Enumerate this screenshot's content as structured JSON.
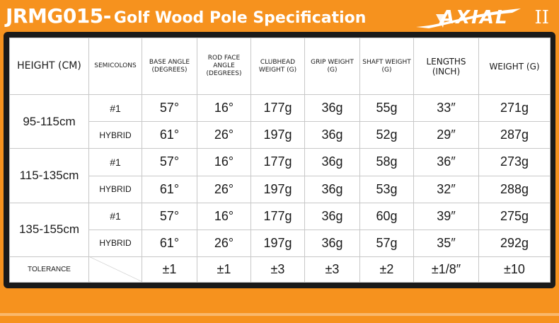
{
  "header": {
    "code": "JRMG015-",
    "subtitle": "Golf Wood Pole Specification",
    "logo_brand": "AXIAL",
    "logo_mark": "II"
  },
  "colors": {
    "background": "#f6921e",
    "frame": "#1a1a1a",
    "grid": "#c8c8c8"
  },
  "table": {
    "columns": [
      "HEIGHT (CM)",
      "SEMICOLONS",
      "BASE ANGLE (DEGREES)",
      "ROD FACE ANGLE (DEGREES)",
      "CLUBHEAD WEIGHT (G)",
      "GRIP WEIGHT (G)",
      "SHAFT WEIGHT (G)",
      "LENGTHS (INCH)",
      "WEIGHT (G)"
    ],
    "groups": [
      {
        "height": "95-115cm",
        "rows": [
          {
            "type": "#1",
            "base_angle": "57°",
            "face_angle": "16°",
            "clubhead": "177g",
            "grip": "36g",
            "shaft": "55g",
            "length": "33″",
            "weight": "271g"
          },
          {
            "type": "HYBRID",
            "base_angle": "61°",
            "face_angle": "26°",
            "clubhead": "197g",
            "grip": "36g",
            "shaft": "52g",
            "length": "29″",
            "weight": "287g"
          }
        ]
      },
      {
        "height": "115-135cm",
        "rows": [
          {
            "type": "#1",
            "base_angle": "57°",
            "face_angle": "16°",
            "clubhead": "177g",
            "grip": "36g",
            "shaft": "58g",
            "length": "36″",
            "weight": "273g"
          },
          {
            "type": "HYBRID",
            "base_angle": "61°",
            "face_angle": "26°",
            "clubhead": "197g",
            "grip": "36g",
            "shaft": "53g",
            "length": "32″",
            "weight": "288g"
          }
        ]
      },
      {
        "height": "135-155cm",
        "rows": [
          {
            "type": "#1",
            "base_angle": "57°",
            "face_angle": "16°",
            "clubhead": "177g",
            "grip": "36g",
            "shaft": "60g",
            "length": "39″",
            "weight": "275g"
          },
          {
            "type": "HYBRID",
            "base_angle": "61°",
            "face_angle": "26°",
            "clubhead": "197g",
            "grip": "36g",
            "shaft": "57g",
            "length": "35″",
            "weight": "292g"
          }
        ]
      }
    ],
    "tolerance": {
      "label": "TOLERANCE",
      "base_angle": "±1",
      "face_angle": "±1",
      "clubhead": "±3",
      "grip": "±3",
      "shaft": "±2",
      "length": "±1/8″",
      "weight": "±10"
    }
  }
}
